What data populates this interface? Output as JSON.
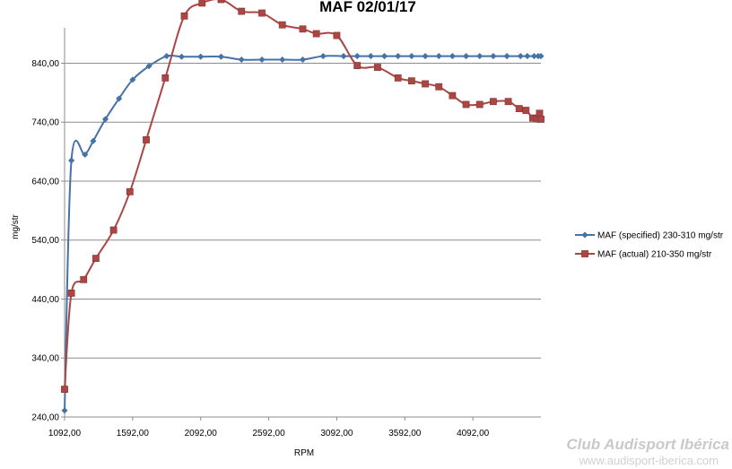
{
  "chart_data": {
    "type": "line",
    "title": "MAF 02/01/17",
    "xlabel": "RPM",
    "ylabel": "mg/str",
    "xlim": [
      1092,
      4592
    ],
    "ylim": [
      240,
      900
    ],
    "x_ticks": [
      "1092,00",
      "1592,00",
      "2092,00",
      "2592,00",
      "3092,00",
      "3592,00",
      "4092,00"
    ],
    "y_ticks": [
      "240,00",
      "340,00",
      "440,00",
      "540,00",
      "640,00",
      "740,00",
      "840,00"
    ],
    "grid": "horizontal",
    "legend_position": "right",
    "series": [
      {
        "name": "MAF (specified) 230-310  mg/str",
        "color": "#4572a7",
        "marker": "diamond",
        "x": [
          1092,
          1142,
          1242,
          1302,
          1392,
          1492,
          1592,
          1712,
          1842,
          1952,
          2092,
          2242,
          2392,
          2542,
          2692,
          2842,
          2992,
          3142,
          3242,
          3342,
          3442,
          3542,
          3642,
          3742,
          3842,
          3942,
          4042,
          4142,
          4242,
          4342,
          4442,
          4492,
          4542,
          4572,
          4592
        ],
        "y": [
          251,
          675,
          685,
          708,
          745,
          780,
          812,
          835,
          852,
          851,
          851,
          851,
          846,
          846,
          846,
          846,
          852,
          852,
          852,
          852,
          852,
          852,
          852,
          852,
          852,
          852,
          852,
          852,
          852,
          852,
          852,
          852,
          852,
          852,
          852
        ]
      },
      {
        "name": "MAF (actual) 210-350  mg/str",
        "color": "#aa4643",
        "marker": "square",
        "x": [
          1092,
          1142,
          1232,
          1322,
          1452,
          1572,
          1692,
          1832,
          1972,
          2102,
          2242,
          2392,
          2542,
          2692,
          2842,
          2942,
          3092,
          3242,
          3392,
          3542,
          3642,
          3742,
          3842,
          3942,
          4042,
          4142,
          4242,
          4352,
          4432,
          4482,
          4532,
          4562,
          4582,
          4592
        ],
        "y": [
          287,
          450,
          473,
          509,
          557,
          622,
          710,
          815,
          920,
          942,
          948,
          928,
          925,
          905,
          898,
          890,
          887,
          836,
          833,
          815,
          810,
          805,
          800,
          785,
          770,
          770,
          775,
          775,
          763,
          760,
          747,
          746,
          755,
          745
        ]
      }
    ]
  },
  "watermark": {
    "brand": "Club Audisport Ibérica",
    "url": "www.audisport-iberica.com"
  }
}
